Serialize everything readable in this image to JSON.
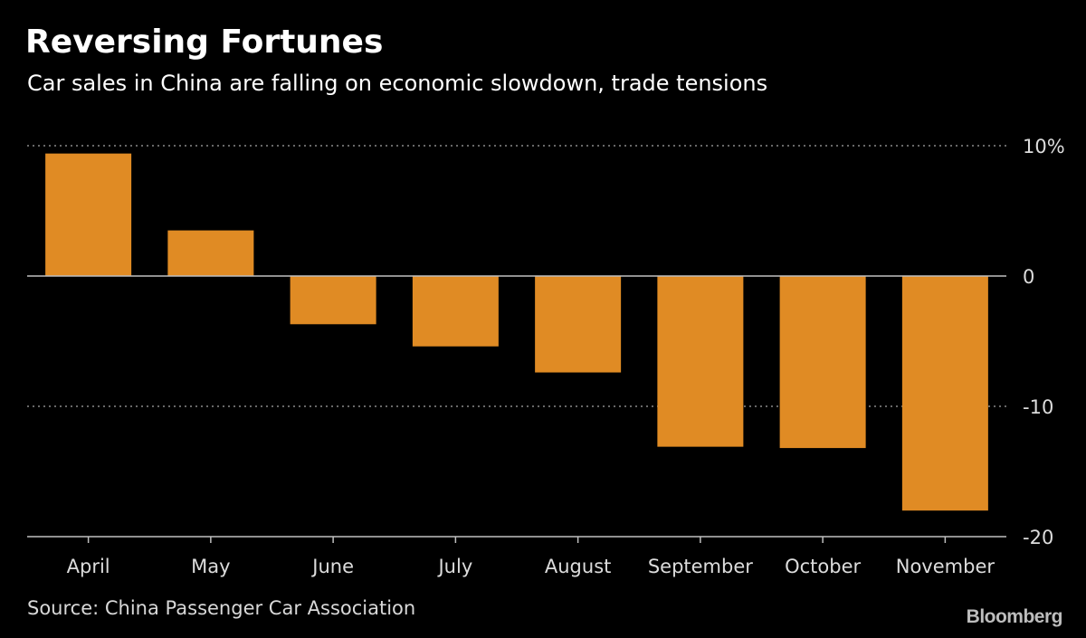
{
  "chart_data": {
    "type": "bar",
    "title": "Reversing Fortunes",
    "subtitle": "Car sales in China are falling on economic slowdown, trade tensions",
    "categories": [
      "April",
      "May",
      "June",
      "July",
      "August",
      "September",
      "October",
      "November"
    ],
    "values": [
      9.4,
      3.5,
      -3.7,
      -5.4,
      -7.4,
      -13.1,
      -13.2,
      -18.0
    ],
    "ylim": [
      -20,
      10
    ],
    "yticks": [
      10,
      0,
      -10,
      -20
    ],
    "ytick_labels": [
      "10%",
      "0",
      "-10",
      "-20"
    ],
    "xlabel": "",
    "ylabel": "",
    "grid": true,
    "source": "Source: China Passenger Car Association",
    "brand": "Bloomberg"
  },
  "colors": {
    "background": "#000000",
    "bar": "#e08b24",
    "axis": "#bfbfbf",
    "grid": "#8a8a8a",
    "text": "#ffffff",
    "tick_text": "#dcdcdc"
  }
}
